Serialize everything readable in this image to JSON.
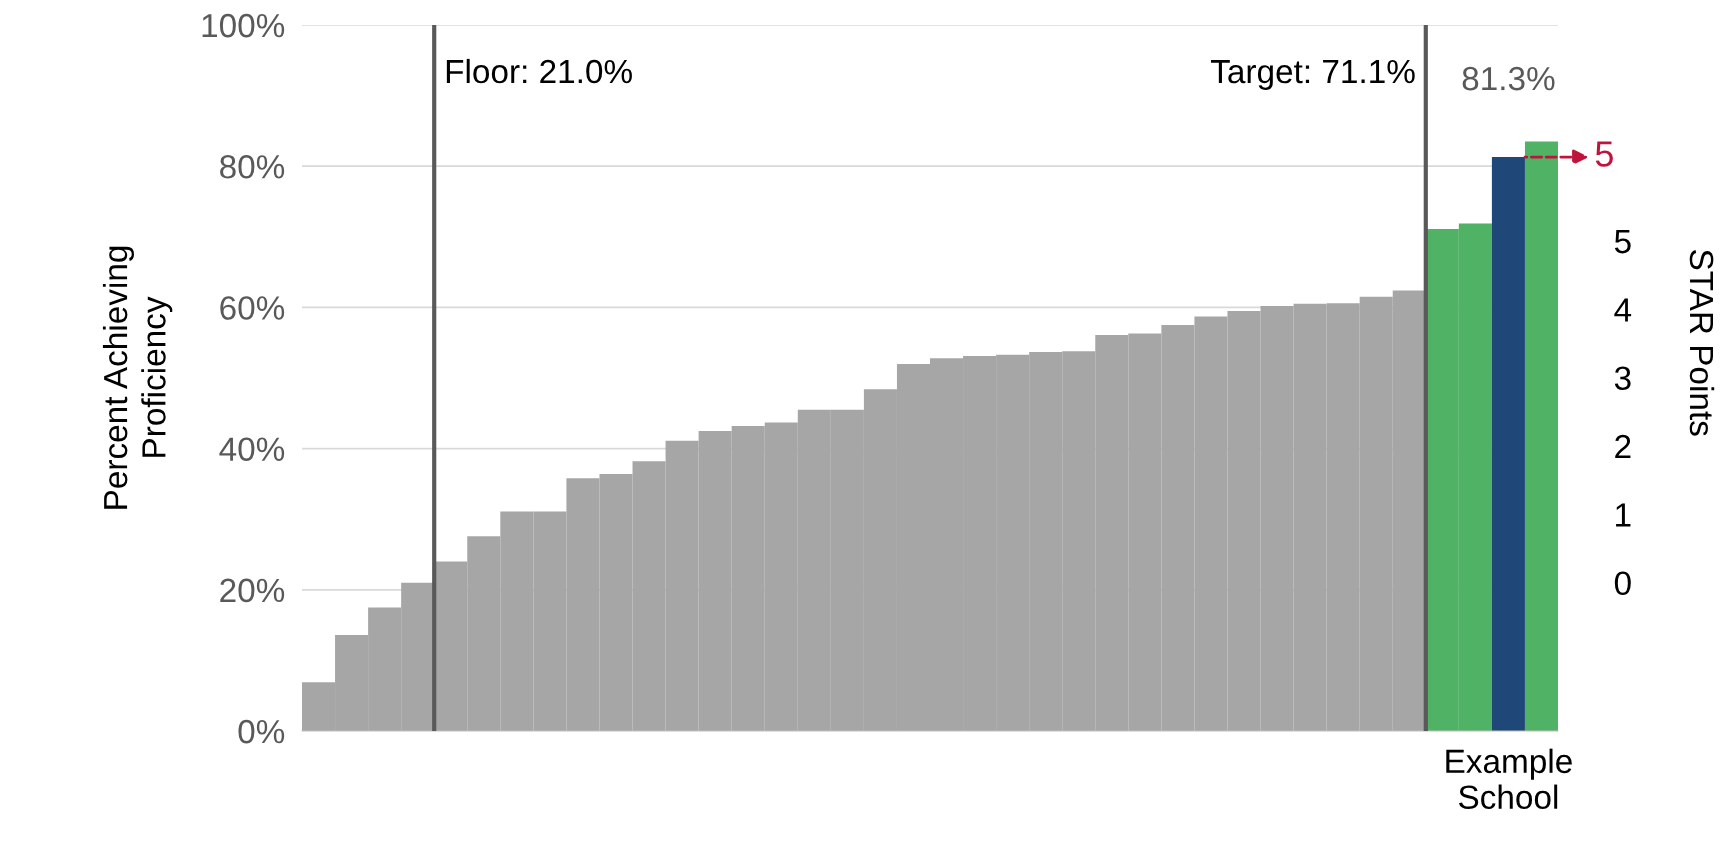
{
  "chart_data": {
    "type": "bar",
    "ylabel": "Percent Achieving\nProficiency",
    "y2label": "STAR Points",
    "categories": [
      null,
      null,
      null,
      null,
      null,
      null,
      null,
      null,
      null,
      null,
      null,
      null,
      null,
      null,
      null,
      null,
      null,
      null,
      null,
      null,
      null,
      null,
      null,
      null,
      null,
      null,
      null,
      null,
      null,
      null,
      null,
      null,
      null,
      null,
      null,
      null,
      "Example School",
      null
    ],
    "values": [
      6.9,
      13.6,
      17.5,
      21.0,
      24.0,
      27.6,
      31.1,
      31.1,
      35.8,
      36.4,
      38.2,
      41.1,
      42.5,
      43.2,
      43.7,
      45.5,
      45.5,
      48.4,
      52.0,
      52.8,
      53.1,
      53.3,
      53.7,
      53.8,
      56.1,
      56.3,
      57.5,
      58.7,
      59.5,
      60.2,
      60.5,
      60.6,
      61.5,
      62.4,
      71.1,
      71.9,
      81.3,
      83.5
    ],
    "colors": [
      "#a6a6a6",
      "#a6a6a6",
      "#a6a6a6",
      "#a6a6a6",
      "#a6a6a6",
      "#a6a6a6",
      "#a6a6a6",
      "#a6a6a6",
      "#a6a6a6",
      "#a6a6a6",
      "#a6a6a6",
      "#a6a6a6",
      "#a6a6a6",
      "#a6a6a6",
      "#a6a6a6",
      "#a6a6a6",
      "#a6a6a6",
      "#a6a6a6",
      "#a6a6a6",
      "#a6a6a6",
      "#a6a6a6",
      "#a6a6a6",
      "#a6a6a6",
      "#a6a6a6",
      "#a6a6a6",
      "#a6a6a6",
      "#a6a6a6",
      "#a6a6a6",
      "#a6a6a6",
      "#a6a6a6",
      "#a6a6a6",
      "#a6a6a6",
      "#a6a6a6",
      "#a6a6a6",
      "#4fb264",
      "#4fb264",
      "#1f4778",
      "#4fb264"
    ],
    "value_labels": [
      null,
      null,
      null,
      null,
      null,
      null,
      null,
      null,
      null,
      null,
      null,
      null,
      null,
      null,
      null,
      null,
      null,
      null,
      null,
      null,
      null,
      null,
      null,
      null,
      null,
      null,
      null,
      null,
      null,
      null,
      null,
      null,
      null,
      null,
      null,
      null,
      "81.3%",
      null
    ],
    "ylim": [
      0,
      100
    ],
    "yticks": [
      {
        "value": 0,
        "label": "0%"
      },
      {
        "value": 20,
        "label": "20%"
      },
      {
        "value": 40,
        "label": "40%"
      },
      {
        "value": 60,
        "label": "60%"
      },
      {
        "value": 80,
        "label": "80%"
      },
      {
        "value": 100,
        "label": "100%"
      }
    ],
    "y2lim": [
      -2.17,
      8.16
    ],
    "y2ticks": [
      0,
      1,
      2,
      3,
      4,
      5
    ],
    "grid": "y",
    "annotations": [
      {
        "text": "5",
        "x": "Example School",
        "y": 81.3
      },
      "Floor: 21.0%",
      "Target: 71.1%"
    ]
  }
}
